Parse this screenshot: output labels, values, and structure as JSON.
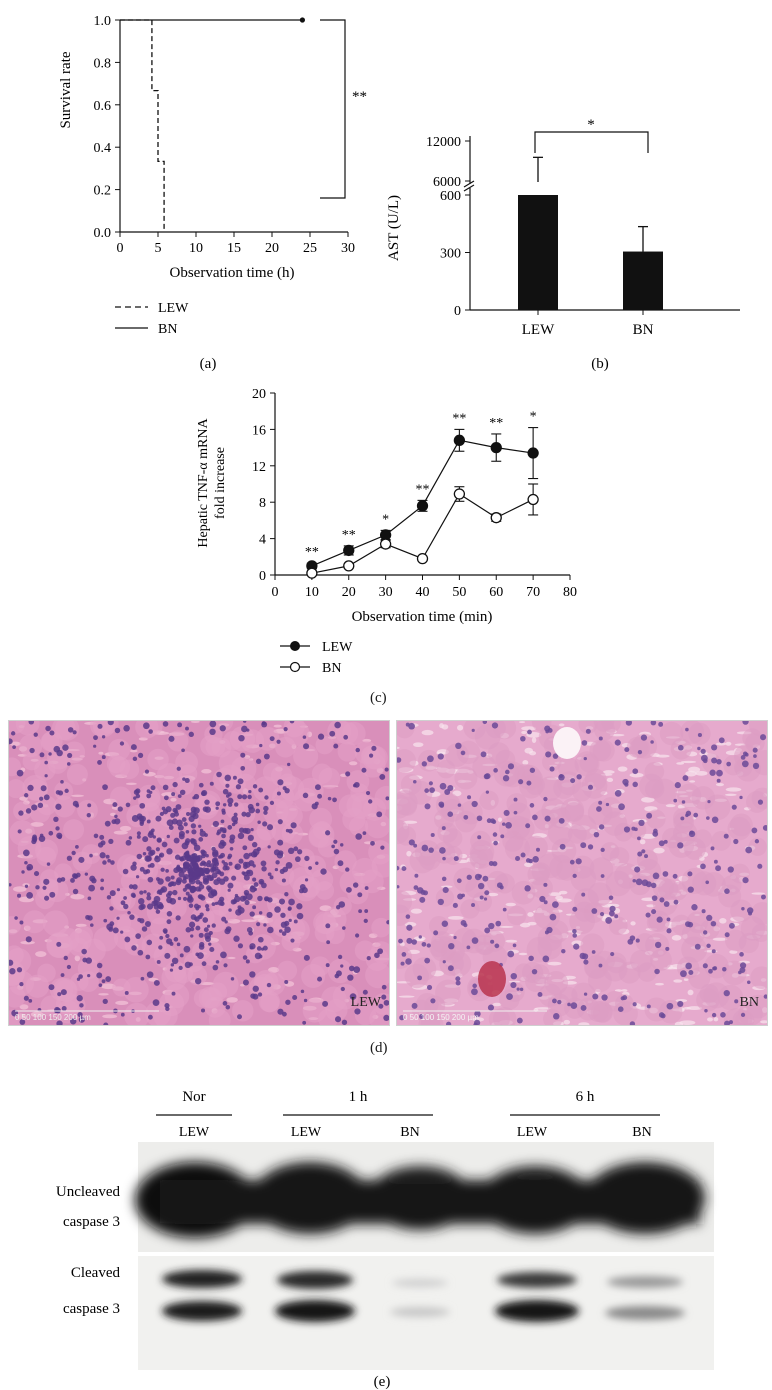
{
  "panels": {
    "a": {
      "label": "(a)",
      "chart_data": {
        "type": "line",
        "ylabel": "Survival rate",
        "xlabel": "Observation time (h)",
        "xlim": [
          0,
          30
        ],
        "ylim": [
          0,
          1.0
        ],
        "xticks": [
          "0",
          "5",
          "10",
          "15",
          "20",
          "25",
          "30"
        ],
        "yticks": [
          "0.0",
          "0.2",
          "0.4",
          "0.6",
          "0.8",
          "1.0"
        ],
        "series": [
          {
            "name": "LEW",
            "style": "dashed",
            "steps": [
              [
                0,
                1.0
              ],
              [
                4.2,
                1.0
              ],
              [
                4.2,
                0.667
              ],
              [
                5.0,
                0.667
              ],
              [
                5.0,
                0.333
              ],
              [
                5.8,
                0.333
              ],
              [
                5.8,
                0
              ]
            ]
          },
          {
            "name": "BN",
            "style": "solid",
            "steps": [
              [
                0,
                1.0
              ],
              [
                24,
                1.0
              ]
            ],
            "end_marker": [
              24,
              1.0
            ]
          }
        ],
        "significance": "**"
      },
      "legend": [
        {
          "name": "LEW",
          "style": "dashed"
        },
        {
          "name": "BN",
          "style": "solid"
        }
      ]
    },
    "b": {
      "label": "(b)",
      "chart_data": {
        "type": "bar",
        "ylabel": "AST (U/L)",
        "categories": [
          "LEW",
          "BN"
        ],
        "values": [
          5850,
          305
        ],
        "errors": [
          3700,
          130
        ],
        "yticks": [
          "0",
          "300",
          "600",
          "6000",
          "12000"
        ],
        "broken_axis": true,
        "significance": "*"
      }
    },
    "c": {
      "label": "(c)",
      "chart_data": {
        "type": "line",
        "ylabel_line1": "Hepatic TNF-α mRNA",
        "ylabel_line2": "fold increase",
        "xlabel": "Observation time (min)",
        "xlim": [
          0,
          80
        ],
        "ylim": [
          0,
          20
        ],
        "xticks": [
          "0",
          "10",
          "20",
          "30",
          "40",
          "50",
          "60",
          "70",
          "80"
        ],
        "yticks": [
          "0",
          "4",
          "8",
          "12",
          "16",
          "20"
        ],
        "x": [
          10,
          20,
          30,
          40,
          50,
          60,
          70
        ],
        "series": [
          {
            "name": "LEW",
            "marker": "filled",
            "values": [
              1.0,
              2.7,
              4.4,
              7.6,
              14.8,
              14.0,
              13.4
            ],
            "errors": [
              0.3,
              0.5,
              0.5,
              0.6,
              1.2,
              1.5,
              2.8
            ]
          },
          {
            "name": "BN",
            "marker": "open",
            "values": [
              0.2,
              1.0,
              3.4,
              1.8,
              8.9,
              6.3,
              8.3
            ],
            "errors": [
              0.1,
              0.2,
              0.4,
              0.2,
              0.8,
              0.4,
              1.7
            ]
          }
        ],
        "significance": [
          "**",
          "**",
          "*",
          "**",
          "**",
          "**",
          "*"
        ]
      },
      "legend": [
        {
          "name": "LEW",
          "marker": "filled"
        },
        {
          "name": "BN",
          "marker": "open"
        }
      ]
    },
    "d": {
      "label": "(d)",
      "images": [
        {
          "corner_label": "LEW",
          "scale_bar": "0  50  100  150  200 µm"
        },
        {
          "corner_label": "BN",
          "scale_bar": "0  50  100  150  200 µm"
        }
      ]
    },
    "e": {
      "label": "(e)",
      "groups": [
        {
          "header": "Nor",
          "lanes": [
            "LEW"
          ]
        },
        {
          "header": "1 h",
          "lanes": [
            "LEW",
            "BN"
          ]
        },
        {
          "header": "6 h",
          "lanes": [
            "LEW",
            "BN"
          ]
        }
      ],
      "rows": [
        {
          "label_line1": "Uncleaved",
          "label_line2": "caspase 3"
        },
        {
          "label_line1": "Cleaved",
          "label_line2": "caspase 3"
        }
      ]
    }
  }
}
